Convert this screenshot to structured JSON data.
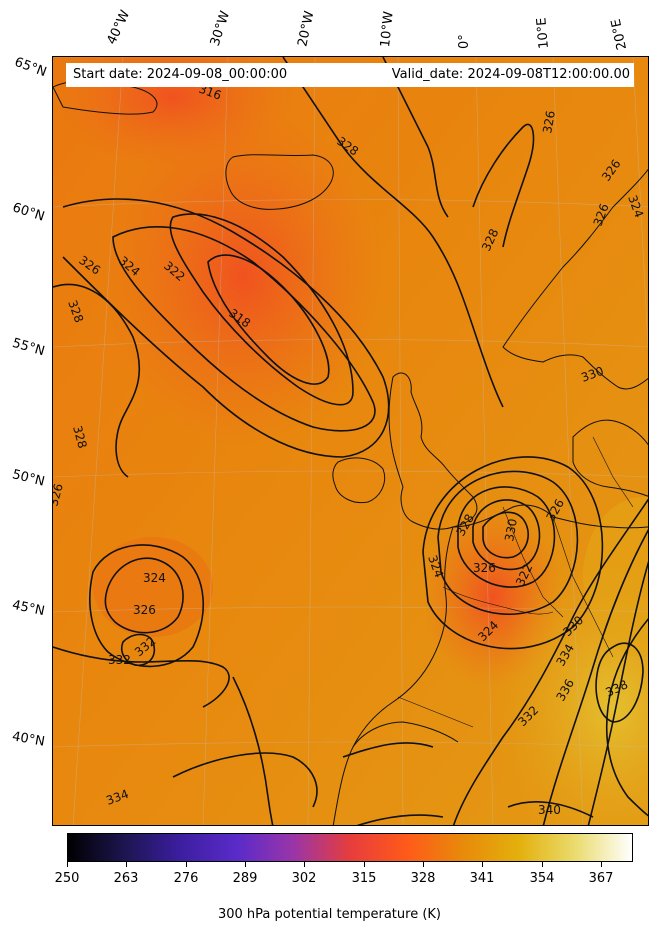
{
  "header": {
    "start_date": "Start date: 2024-09-08_00:00:00",
    "valid_date": "Valid_date: 2024-09-08T12:00:00.00"
  },
  "longitude_labels": [
    "40°W",
    "30°W",
    "20°W",
    "10°W",
    "0°",
    "10°E",
    "20°E"
  ],
  "latitude_labels": [
    "65°N",
    "60°N",
    "55°N",
    "50°N",
    "45°N",
    "40°N"
  ],
  "contour_labels": [
    "316",
    "318",
    "322",
    "324",
    "326",
    "328",
    "330",
    "332",
    "334",
    "336",
    "338",
    "340"
  ],
  "colorbar": {
    "title": "300 hPa potential temperature (K)",
    "ticks": [
      "250",
      "263",
      "276",
      "289",
      "302",
      "315",
      "328",
      "341",
      "354",
      "367"
    ],
    "colors": [
      "#000000",
      "#1d1550",
      "#3c1ea0",
      "#5a2bc9",
      "#9a35a8",
      "#e63d3d",
      "#ff5a1a",
      "#e88a0a",
      "#e3b00d",
      "#eadc6e",
      "#ffffff"
    ]
  },
  "map_colors": {
    "base": "#e8870e",
    "warm_low": "#f05a22",
    "warm_high": "#e6b21a",
    "contour": "#111111"
  }
}
